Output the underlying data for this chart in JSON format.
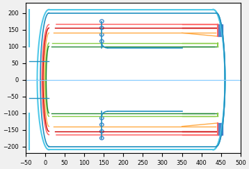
{
  "xlim": [
    -50,
    500
  ],
  "ylim": [
    -220,
    230
  ],
  "xticks": [
    -50,
    0,
    50,
    100,
    150,
    200,
    250,
    300,
    350,
    400,
    450,
    500
  ],
  "yticks": [
    -200,
    -150,
    -100,
    -50,
    0,
    50,
    100,
    150,
    200
  ],
  "bg_color": "#f0f0f0",
  "plot_bg": "#ffffff",
  "colors": {
    "outer": "#4fc8e8",
    "outer2": "#2090c0",
    "inner1": "#ff6666",
    "inner2": "#cc0000",
    "inner3": "#ffaa44",
    "inner4": "#88cc44",
    "inner5": "#228833",
    "centerline": "#88ccff",
    "blue_fill": "#3070c8",
    "dot_color": "#4488cc"
  }
}
